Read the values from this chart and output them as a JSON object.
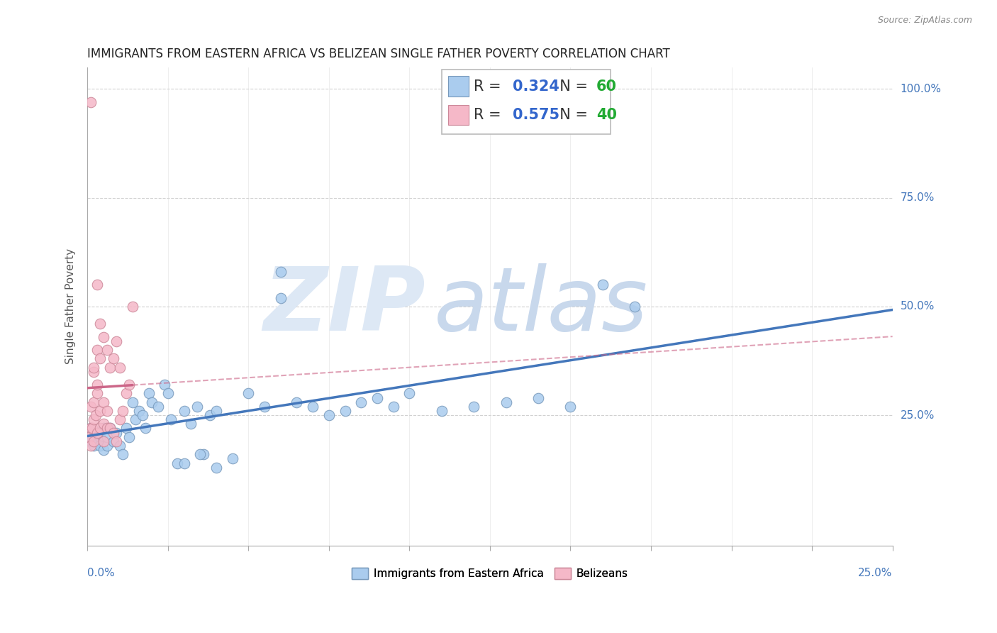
{
  "title": "IMMIGRANTS FROM EASTERN AFRICA VS BELIZEAN SINGLE FATHER POVERTY CORRELATION CHART",
  "source": "Source: ZipAtlas.com",
  "ylabel": "Single Father Poverty",
  "series1_label": "Immigrants from Eastern Africa",
  "series1_color": "#aaccee",
  "series1_edge": "#7799bb",
  "series1_line": "#4477bb",
  "series1_R": "0.324",
  "series1_N": "60",
  "series2_label": "Belizeans",
  "series2_color": "#f5b8c8",
  "series2_edge": "#cc8899",
  "series2_line": "#cc6688",
  "series2_R": "0.575",
  "series2_N": "40",
  "legend_R_color": "#3366cc",
  "legend_N_color": "#22aa33",
  "background_color": "#ffffff",
  "watermark_zip_color": "#dde8f5",
  "watermark_atlas_color": "#c8d8ec",
  "x_min": 0.0,
  "x_max": 0.25,
  "y_min": -0.05,
  "y_max": 1.05,
  "blue_x": [
    0.001,
    0.001,
    0.002,
    0.002,
    0.003,
    0.003,
    0.004,
    0.004,
    0.005,
    0.005,
    0.006,
    0.006,
    0.007,
    0.008,
    0.009,
    0.01,
    0.011,
    0.012,
    0.013,
    0.014,
    0.015,
    0.016,
    0.017,
    0.018,
    0.019,
    0.02,
    0.022,
    0.024,
    0.026,
    0.028,
    0.03,
    0.032,
    0.034,
    0.036,
    0.038,
    0.04,
    0.045,
    0.05,
    0.055,
    0.06,
    0.065,
    0.07,
    0.075,
    0.08,
    0.085,
    0.09,
    0.095,
    0.1,
    0.11,
    0.12,
    0.13,
    0.14,
    0.15,
    0.16,
    0.17,
    0.06,
    0.025,
    0.03,
    0.035,
    0.04
  ],
  "blue_y": [
    0.19,
    0.22,
    0.2,
    0.18,
    0.19,
    0.21,
    0.2,
    0.18,
    0.22,
    0.17,
    0.18,
    0.2,
    0.22,
    0.19,
    0.21,
    0.18,
    0.16,
    0.22,
    0.2,
    0.28,
    0.24,
    0.26,
    0.25,
    0.22,
    0.3,
    0.28,
    0.27,
    0.32,
    0.24,
    0.14,
    0.26,
    0.23,
    0.27,
    0.16,
    0.25,
    0.26,
    0.15,
    0.3,
    0.27,
    0.52,
    0.28,
    0.27,
    0.25,
    0.26,
    0.28,
    0.29,
    0.27,
    0.3,
    0.26,
    0.27,
    0.28,
    0.29,
    0.27,
    0.55,
    0.5,
    0.58,
    0.3,
    0.14,
    0.16,
    0.13
  ],
  "pink_x": [
    0.0005,
    0.001,
    0.001,
    0.001,
    0.001,
    0.0015,
    0.002,
    0.002,
    0.002,
    0.002,
    0.0025,
    0.003,
    0.003,
    0.003,
    0.003,
    0.004,
    0.004,
    0.004,
    0.004,
    0.005,
    0.005,
    0.005,
    0.005,
    0.006,
    0.006,
    0.006,
    0.007,
    0.007,
    0.008,
    0.008,
    0.009,
    0.009,
    0.01,
    0.01,
    0.011,
    0.012,
    0.013,
    0.014,
    0.002,
    0.003
  ],
  "pink_y": [
    0.2,
    0.18,
    0.22,
    0.27,
    0.97,
    0.22,
    0.19,
    0.24,
    0.28,
    0.35,
    0.25,
    0.21,
    0.3,
    0.32,
    0.4,
    0.22,
    0.26,
    0.38,
    0.46,
    0.19,
    0.23,
    0.28,
    0.43,
    0.22,
    0.26,
    0.4,
    0.22,
    0.36,
    0.21,
    0.38,
    0.19,
    0.42,
    0.24,
    0.36,
    0.26,
    0.3,
    0.32,
    0.5,
    0.36,
    0.55
  ]
}
